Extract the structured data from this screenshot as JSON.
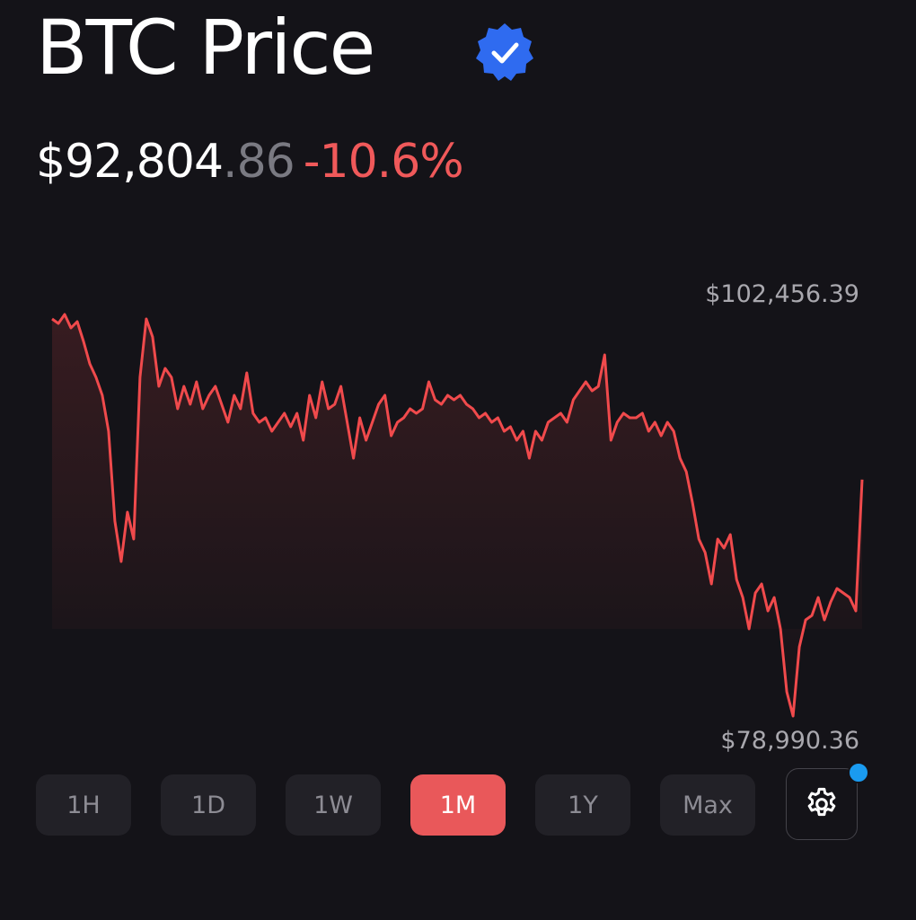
{
  "header": {
    "title": "BTC Price",
    "price": "$92,804",
    "price_cents": ".86",
    "change": "-10.6%"
  },
  "chart_data": {
    "type": "line",
    "color": "#f04a4c",
    "ylim": [
      78990.36,
      102456.39
    ],
    "yticks": [
      {
        "value": 102456.39,
        "label": "$102,456.39"
      },
      {
        "value": 78990.36,
        "label": "$78,990.36"
      }
    ],
    "values": [
      102195,
      101933,
      102456,
      101670,
      102038,
      100883,
      99570,
      98783,
      97733,
      95633,
      90383,
      88020,
      90908,
      89333,
      98783,
      102195,
      101145,
      98258,
      99308,
      98783,
      96945,
      98258,
      97208,
      98520,
      96945,
      97733,
      98258,
      97208,
      96158,
      97733,
      96945,
      99045,
      96683,
      96158,
      96420,
      95633,
      96158,
      96683,
      95895,
      96683,
      95108,
      97733,
      96420,
      98520,
      96945,
      97208,
      98258,
      96158,
      94058,
      96420,
      95108,
      96158,
      97208,
      97733,
      95370,
      96158,
      96420,
      96945,
      96683,
      96945,
      98520,
      97470,
      97208,
      97733,
      97470,
      97733,
      97208,
      96945,
      96420,
      96683,
      96158,
      96420,
      95633,
      95895,
      95108,
      95633,
      94058,
      95633,
      95108,
      96158,
      96420,
      96683,
      96158,
      97470,
      97995,
      98520,
      97995,
      98258,
      100095,
      95108,
      96158,
      96683,
      96420,
      96420,
      96683,
      95633,
      96158,
      95370,
      96158,
      95633,
      94058,
      93270,
      91433,
      89333,
      88545,
      86708,
      89333,
      88808,
      89595,
      86970,
      85920,
      84083,
      86183,
      86708,
      85133,
      85920,
      84083,
      80408,
      78990,
      83033,
      84608,
      84870,
      85920,
      84608,
      85658,
      86445,
      86183,
      85920,
      85133,
      92805
    ]
  },
  "ranges": {
    "items": [
      "1H",
      "1D",
      "1W",
      "1M",
      "1Y",
      "Max"
    ],
    "selected": "1M"
  }
}
